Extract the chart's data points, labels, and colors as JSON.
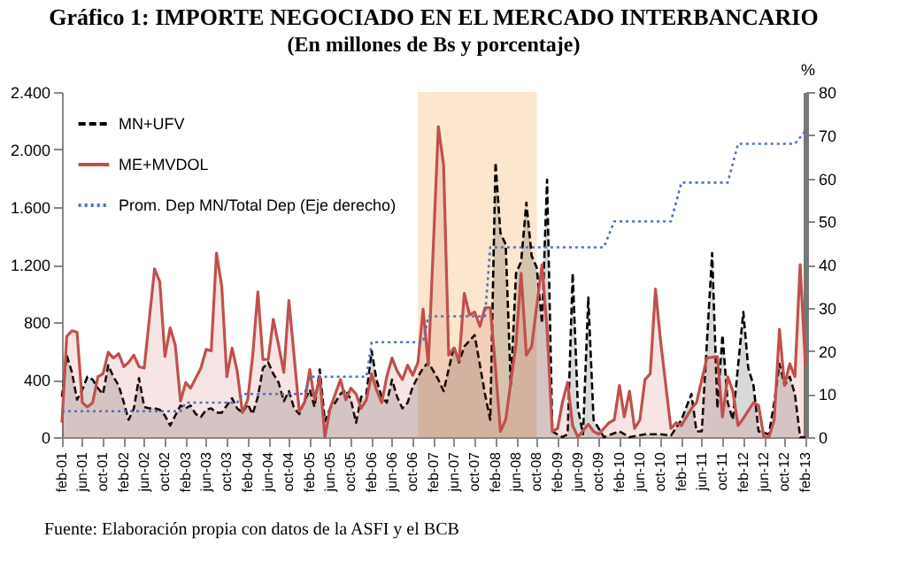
{
  "chart_data": {
    "type": "line",
    "title": "Gráfico 1: IMPORTE NEGOCIADO EN EL MERCADO INTERBANCARIO",
    "subtitle": "(En millones de Bs y porcentaje)",
    "y2label": "%",
    "annotations": [
      "Fuente:      Elaboración propia con datos de la ASFI y el BCB"
    ],
    "legend": "top left",
    "grid": false,
    "xlim": [
      "2001-02",
      "2013-02"
    ],
    "xticks": [
      {
        "value": "2001-02",
        "label": "feb-01"
      },
      {
        "value": "2001-06",
        "label": "jun-01"
      },
      {
        "value": "2001-10",
        "label": "oct-01"
      },
      {
        "value": "2002-02",
        "label": "feb-02"
      },
      {
        "value": "2002-06",
        "label": "jun-02"
      },
      {
        "value": "2002-10",
        "label": "oct-02"
      },
      {
        "value": "2003-02",
        "label": "feb-03"
      },
      {
        "value": "2003-06",
        "label": "jun-03"
      },
      {
        "value": "2003-10",
        "label": "oct-03"
      },
      {
        "value": "2004-02",
        "label": "feb-04"
      },
      {
        "value": "2004-06",
        "label": "jun-04"
      },
      {
        "value": "2004-10",
        "label": "oct-04"
      },
      {
        "value": "2005-02",
        "label": "feb-05"
      },
      {
        "value": "2005-06",
        "label": "jun-05"
      },
      {
        "value": "2005-10",
        "label": "oct-05"
      },
      {
        "value": "2006-02",
        "label": "feb-06"
      },
      {
        "value": "2006-06",
        "label": "jun-06"
      },
      {
        "value": "2006-10",
        "label": "oct-06"
      },
      {
        "value": "2007-02",
        "label": "feb-07"
      },
      {
        "value": "2007-06",
        "label": "jun-07"
      },
      {
        "value": "2007-10",
        "label": "oct-07"
      },
      {
        "value": "2008-02",
        "label": "feb-08"
      },
      {
        "value": "2008-06",
        "label": "jun-08"
      },
      {
        "value": "2008-10",
        "label": "oct-08"
      },
      {
        "value": "2009-02",
        "label": "feb-09"
      },
      {
        "value": "2009-06",
        "label": "jun-09"
      },
      {
        "value": "2009-10",
        "label": "oct-09"
      },
      {
        "value": "2010-02",
        "label": "feb-10"
      },
      {
        "value": "2010-06",
        "label": "jun-10"
      },
      {
        "value": "2010-10",
        "label": "oct-10"
      },
      {
        "value": "2011-02",
        "label": "feb-11"
      },
      {
        "value": "2011-06",
        "label": "jun-11"
      },
      {
        "value": "2011-10",
        "label": "oct-11"
      },
      {
        "value": "2012-02",
        "label": "feb-12"
      },
      {
        "value": "2012-06",
        "label": "jun-12"
      },
      {
        "value": "2012-10",
        "label": "oct-12"
      },
      {
        "value": "2013-02",
        "label": "feb-13"
      }
    ],
    "ylim": [
      0,
      2400
    ],
    "yticks": [
      {
        "value": 0,
        "label": "0"
      },
      {
        "value": 400,
        "label": "400"
      },
      {
        "value": 800,
        "label": "800"
      },
      {
        "value": 1200,
        "label": "1.200"
      },
      {
        "value": 1600,
        "label": "1.600"
      },
      {
        "value": 2000,
        "label": "2.000"
      },
      {
        "value": 2400,
        "label": "2.400"
      }
    ],
    "y2lim": [
      0,
      80
    ],
    "y2ticks": [
      0,
      10,
      20,
      30,
      40,
      50,
      60,
      70,
      80
    ],
    "bands": [
      {
        "axis": "x",
        "from": "2006-11",
        "to": "2008-10",
        "color": "#fbe0c0"
      }
    ],
    "series": [
      {
        "name": "MN+UFV",
        "type": "area",
        "color": "#000000",
        "line_style": "dashed",
        "x": [
          "2001-02",
          "2001-03",
          "2001-04",
          "2001-05",
          "2001-06",
          "2001-07",
          "2001-08",
          "2001-09",
          "2001-10",
          "2001-11",
          "2001-12",
          "2002-01",
          "2002-02",
          "2002-03",
          "2002-04",
          "2002-05",
          "2002-06",
          "2002-07",
          "2002-08",
          "2002-09",
          "2002-10",
          "2002-11",
          "2002-12",
          "2003-01",
          "2003-02",
          "2003-03",
          "2003-04",
          "2003-05",
          "2003-06",
          "2003-07",
          "2003-08",
          "2003-09",
          "2003-10",
          "2003-11",
          "2003-12",
          "2004-01",
          "2004-02",
          "2004-03",
          "2004-04",
          "2004-05",
          "2004-06",
          "2004-07",
          "2004-08",
          "2004-09",
          "2004-10",
          "2004-11",
          "2004-12",
          "2005-01",
          "2005-02",
          "2005-03",
          "2005-04",
          "2005-05",
          "2005-06",
          "2005-07",
          "2005-08",
          "2005-09",
          "2005-10",
          "2005-11",
          "2005-12",
          "2006-01",
          "2006-02",
          "2006-03",
          "2006-04",
          "2006-05",
          "2006-06",
          "2006-07",
          "2006-08",
          "2006-09",
          "2006-10",
          "2006-11",
          "2006-12",
          "2007-01",
          "2007-03",
          "2007-04",
          "2007-06",
          "2007-07",
          "2007-08",
          "2007-10",
          "2007-12",
          "2008-01",
          "2008-02",
          "2008-03",
          "2008-04",
          "2008-05",
          "2008-06",
          "2008-07",
          "2008-08",
          "2008-09",
          "2008-10",
          "2008-11",
          "2008-12",
          "2009-01",
          "2009-03",
          "2009-04",
          "2009-05",
          "2009-06",
          "2009-07",
          "2009-08",
          "2009-09",
          "2009-11",
          "2010-02",
          "2010-04",
          "2010-07",
          "2010-10",
          "2010-12",
          "2011-02",
          "2011-04",
          "2011-05",
          "2011-06",
          "2011-08",
          "2011-09",
          "2011-10",
          "2011-11",
          "2011-12",
          "2012-02",
          "2012-03",
          "2012-04",
          "2012-05",
          "2012-07",
          "2012-08",
          "2012-09",
          "2012-10",
          "2012-11",
          "2012-12",
          "2013-01",
          "2013-02"
        ],
        "values": [
          280,
          570,
          450,
          260,
          330,
          420,
          400,
          340,
          300,
          500,
          420,
          360,
          240,
          120,
          200,
          410,
          210,
          200,
          200,
          190,
          150,
          80,
          150,
          220,
          200,
          220,
          160,
          140,
          190,
          200,
          170,
          170,
          220,
          270,
          200,
          170,
          230,
          160,
          280,
          480,
          520,
          440,
          380,
          250,
          320,
          200,
          160,
          250,
          330,
          210,
          470,
          110,
          200,
          240,
          300,
          330,
          260,
          100,
          280,
          300,
          600,
          400,
          280,
          240,
          400,
          280,
          200,
          240,
          350,
          420,
          480,
          520,
          400,
          320,
          630,
          520,
          630,
          710,
          300,
          120,
          1910,
          1420,
          1340,
          360,
          1140,
          1220,
          1630,
          1260,
          1180,
          790,
          1790,
          40,
          0,
          20,
          1140,
          200,
          20,
          970,
          120,
          0,
          40,
          0,
          20,
          20,
          10,
          120,
          300,
          40,
          40,
          1280,
          200,
          710,
          240,
          120,
          870,
          480,
          360,
          40,
          20,
          240,
          510,
          360,
          420,
          300,
          0,
          0
        ]
      },
      {
        "name": "ME+MVDOL",
        "type": "area",
        "color": "#c0504d",
        "line_style": "solid",
        "x": [
          "2001-02",
          "2001-03",
          "2001-04",
          "2001-05",
          "2001-06",
          "2001-07",
          "2001-08",
          "2001-09",
          "2001-10",
          "2001-11",
          "2001-12",
          "2002-01",
          "2002-02",
          "2002-03",
          "2002-04",
          "2002-05",
          "2002-06",
          "2002-08",
          "2002-09",
          "2002-10",
          "2002-11",
          "2002-12",
          "2003-01",
          "2003-02",
          "2003-03",
          "2003-05",
          "2003-06",
          "2003-07",
          "2003-08",
          "2003-09",
          "2003-10",
          "2003-11",
          "2003-12",
          "2004-01",
          "2004-02",
          "2004-03",
          "2004-04",
          "2004-05",
          "2004-06",
          "2004-07",
          "2004-08",
          "2004-09",
          "2004-10",
          "2004-11",
          "2004-12",
          "2005-01",
          "2005-02",
          "2005-03",
          "2005-04",
          "2005-05",
          "2005-06",
          "2005-08",
          "2005-09",
          "2005-10",
          "2005-11",
          "2005-12",
          "2006-01",
          "2006-02",
          "2006-03",
          "2006-04",
          "2006-05",
          "2006-06",
          "2006-07",
          "2006-08",
          "2006-09",
          "2006-10",
          "2006-11",
          "2006-12",
          "2007-01",
          "2007-03",
          "2007-04",
          "2007-05",
          "2007-06",
          "2007-07",
          "2007-08",
          "2007-09",
          "2007-10",
          "2007-11",
          "2007-12",
          "2008-01",
          "2008-02",
          "2008-03",
          "2008-04",
          "2008-06",
          "2008-07",
          "2008-08",
          "2008-09",
          "2008-11",
          "2008-12",
          "2009-01",
          "2009-02",
          "2009-03",
          "2009-04",
          "2009-05",
          "2009-06",
          "2009-08",
          "2009-09",
          "2009-10",
          "2009-12",
          "2010-01",
          "2010-02",
          "2010-03",
          "2010-04",
          "2010-05",
          "2010-06",
          "2010-07",
          "2010-08",
          "2010-09",
          "2010-10",
          "2010-12",
          "2011-01",
          "2011-02",
          "2011-04",
          "2011-05",
          "2011-07",
          "2011-09",
          "2011-10",
          "2011-11",
          "2011-12",
          "2012-01",
          "2012-02",
          "2012-04",
          "2012-05",
          "2012-06",
          "2012-07",
          "2012-08",
          "2012-09",
          "2012-10",
          "2012-11",
          "2012-12",
          "2013-01",
          "2013-02"
        ],
        "values": [
          100,
          700,
          740,
          730,
          240,
          210,
          240,
          420,
          440,
          590,
          550,
          580,
          490,
          520,
          570,
          490,
          480,
          1170,
          1080,
          560,
          760,
          640,
          250,
          380,
          340,
          480,
          610,
          600,
          1280,
          1050,
          420,
          620,
          460,
          170,
          260,
          560,
          1010,
          540,
          540,
          820,
          640,
          450,
          950,
          560,
          180,
          240,
          470,
          260,
          420,
          0,
          200,
          400,
          260,
          340,
          300,
          200,
          260,
          440,
          330,
          240,
          420,
          550,
          460,
          400,
          500,
          430,
          520,
          890,
          500,
          2160,
          1890,
          570,
          620,
          530,
          1000,
          850,
          870,
          770,
          900,
          900,
          480,
          40,
          120,
          650,
          1140,
          570,
          630,
          1200,
          750,
          40,
          60,
          240,
          380,
          80,
          0,
          90,
          40,
          20,
          100,
          120,
          360,
          140,
          320,
          60,
          120,
          400,
          440,
          1030,
          670,
          60,
          100,
          80,
          200,
          240,
          550,
          560,
          140,
          420,
          320,
          80,
          130,
          240,
          220,
          0,
          0,
          120,
          750,
          360,
          510,
          420,
          1200,
          500
        ]
      },
      {
        "name": "Prom. Dep MN/Total Dep (Eje derecho)",
        "color": "#4f6fc0",
        "line_style": "dotted",
        "axis": "y2",
        "x": [
          "2001-02",
          "2003-01",
          "2003-02",
          "2003-12",
          "2004-01",
          "2005-01",
          "2005-02",
          "2006-01",
          "2006-02",
          "2006-12",
          "2007-01",
          "2007-12",
          "2008-01",
          "2009-11",
          "2010-01",
          "2010-12",
          "2011-02",
          "2011-11",
          "2012-01",
          "2012-12",
          "2013-02"
        ],
        "values": [
          6,
          6,
          8,
          8,
          10,
          10,
          14,
          14,
          22,
          22,
          28,
          28,
          44,
          44,
          50,
          50,
          59,
          59,
          68,
          68,
          71
        ]
      }
    ]
  }
}
